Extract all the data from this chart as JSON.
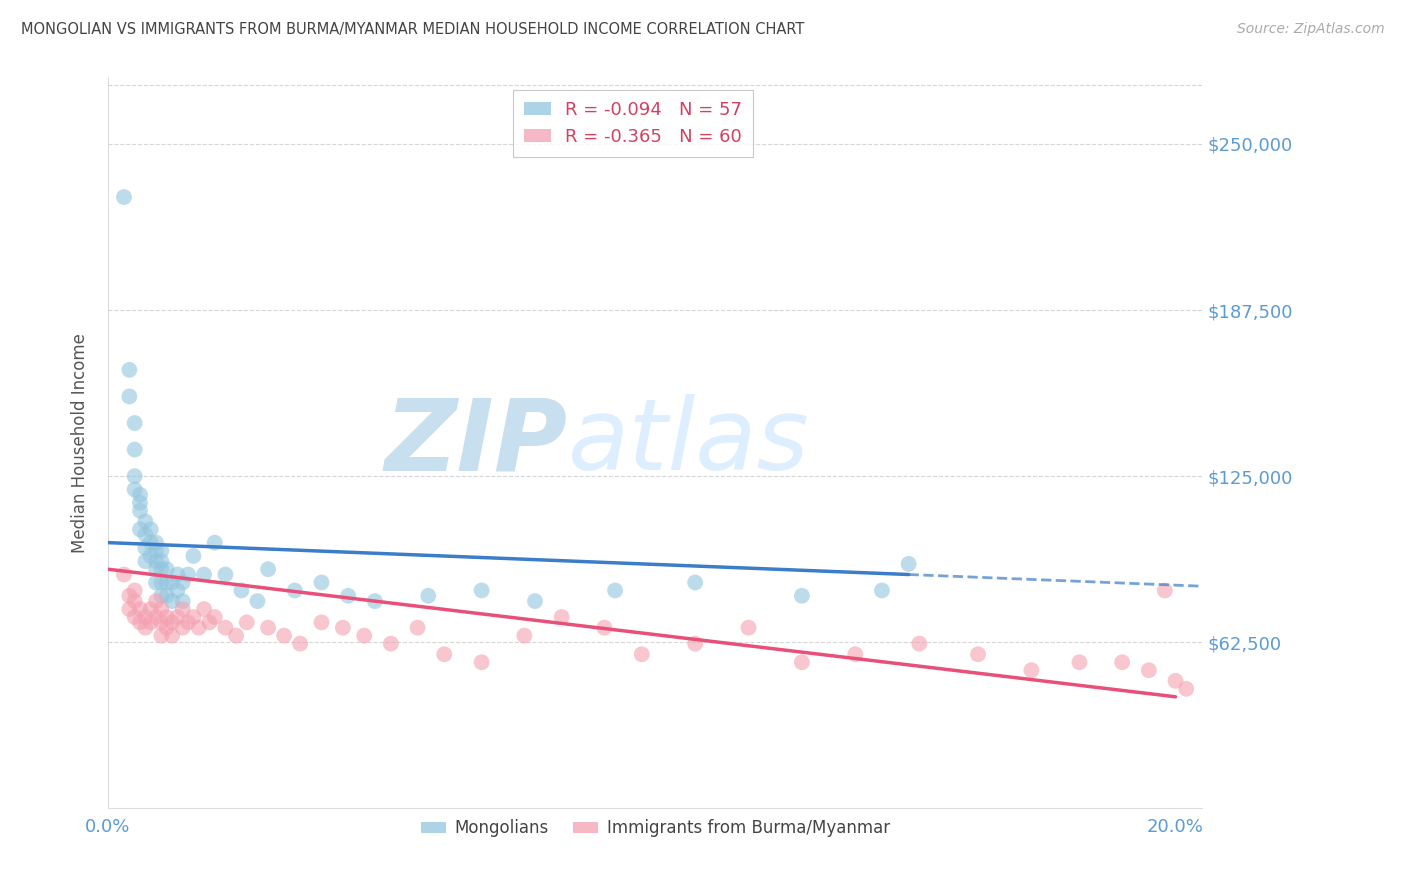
{
  "title": "MONGOLIAN VS IMMIGRANTS FROM BURMA/MYANMAR MEDIAN HOUSEHOLD INCOME CORRELATION CHART",
  "source": "Source: ZipAtlas.com",
  "ylabel": "Median Household Income",
  "yticks": [
    0,
    62500,
    125000,
    187500,
    250000
  ],
  "ymin": 0,
  "ymax": 275000,
  "xmin": 0.0,
  "xmax": 0.205,
  "series1_label": "Mongolians",
  "series2_label": "Immigrants from Burma/Myanmar",
  "series1_color": "#92c5de",
  "series2_color": "#f4a0b0",
  "series1_line_color": "#3b7dc8",
  "series2_line_color": "#e8507a",
  "watermark_zip": "ZIP",
  "watermark_atlas": "atlas",
  "watermark_color": "#ddeeff",
  "background_color": "#ffffff",
  "title_color": "#444444",
  "ytick_color": "#5b9bd5",
  "xtick_color": "#5b9bd5",
  "grid_color": "#cccccc",
  "legend_r1": "R = ",
  "legend_r1_val": "-0.094",
  "legend_n1": "N = ",
  "legend_n1_val": "57",
  "legend_r2": "R = ",
  "legend_r2_val": "-0.365",
  "legend_n2": "N = ",
  "legend_n2_val": "60",
  "mongolian_x": [
    0.003,
    0.004,
    0.004,
    0.005,
    0.005,
    0.005,
    0.005,
    0.006,
    0.006,
    0.006,
    0.006,
    0.007,
    0.007,
    0.007,
    0.007,
    0.008,
    0.008,
    0.008,
    0.009,
    0.009,
    0.009,
    0.009,
    0.009,
    0.01,
    0.01,
    0.01,
    0.01,
    0.01,
    0.011,
    0.011,
    0.011,
    0.012,
    0.012,
    0.013,
    0.013,
    0.014,
    0.014,
    0.015,
    0.016,
    0.018,
    0.02,
    0.022,
    0.025,
    0.028,
    0.03,
    0.035,
    0.04,
    0.045,
    0.05,
    0.06,
    0.07,
    0.08,
    0.095,
    0.11,
    0.13,
    0.145,
    0.15
  ],
  "mongolian_y": [
    230000,
    165000,
    155000,
    145000,
    135000,
    125000,
    120000,
    118000,
    115000,
    112000,
    105000,
    108000,
    103000,
    98000,
    93000,
    105000,
    100000,
    95000,
    100000,
    97000,
    93000,
    90000,
    85000,
    97000,
    93000,
    90000,
    85000,
    80000,
    90000,
    85000,
    80000,
    85000,
    78000,
    88000,
    82000,
    85000,
    78000,
    88000,
    95000,
    88000,
    100000,
    88000,
    82000,
    78000,
    90000,
    82000,
    85000,
    80000,
    78000,
    80000,
    82000,
    78000,
    82000,
    85000,
    80000,
    82000,
    92000
  ],
  "burma_x": [
    0.003,
    0.004,
    0.004,
    0.005,
    0.005,
    0.005,
    0.006,
    0.006,
    0.007,
    0.007,
    0.008,
    0.008,
    0.009,
    0.009,
    0.01,
    0.01,
    0.01,
    0.011,
    0.011,
    0.012,
    0.012,
    0.013,
    0.014,
    0.014,
    0.015,
    0.016,
    0.017,
    0.018,
    0.019,
    0.02,
    0.022,
    0.024,
    0.026,
    0.03,
    0.033,
    0.036,
    0.04,
    0.044,
    0.048,
    0.053,
    0.058,
    0.063,
    0.07,
    0.078,
    0.085,
    0.093,
    0.1,
    0.11,
    0.12,
    0.13,
    0.14,
    0.152,
    0.163,
    0.173,
    0.182,
    0.19,
    0.195,
    0.198,
    0.2,
    0.202
  ],
  "burma_y": [
    88000,
    80000,
    75000,
    82000,
    78000,
    72000,
    75000,
    70000,
    72000,
    68000,
    75000,
    70000,
    78000,
    72000,
    75000,
    70000,
    65000,
    72000,
    68000,
    70000,
    65000,
    72000,
    68000,
    75000,
    70000,
    72000,
    68000,
    75000,
    70000,
    72000,
    68000,
    65000,
    70000,
    68000,
    65000,
    62000,
    70000,
    68000,
    65000,
    62000,
    68000,
    58000,
    55000,
    65000,
    72000,
    68000,
    58000,
    62000,
    68000,
    55000,
    58000,
    62000,
    58000,
    52000,
    55000,
    55000,
    52000,
    82000,
    48000,
    45000
  ]
}
